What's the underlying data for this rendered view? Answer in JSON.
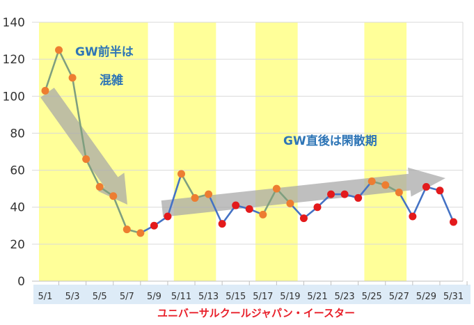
{
  "chart_data": {
    "type": "line",
    "title": "",
    "xlabel": "ユニバーサルクールジャパン・イースター",
    "ylabel": "",
    "ylim": [
      0,
      140
    ],
    "yticks": [
      0,
      20,
      40,
      60,
      80,
      100,
      120,
      140
    ],
    "grid": true,
    "x": [
      "5/1",
      "5/2",
      "5/3",
      "5/4",
      "5/5",
      "5/6",
      "5/7",
      "5/8",
      "5/9",
      "5/10",
      "5/11",
      "5/12",
      "5/13",
      "5/14",
      "5/15",
      "5/16",
      "5/17",
      "5/18",
      "5/19",
      "5/20",
      "5/21",
      "5/22",
      "5/23",
      "5/24",
      "5/25",
      "5/26",
      "5/27",
      "5/28",
      "5/29",
      "5/30",
      "5/31"
    ],
    "xtick_labels": [
      "5/1",
      "5/3",
      "5/5",
      "5/7",
      "5/9",
      "5/11",
      "5/13",
      "5/15",
      "5/17",
      "5/19",
      "5/21",
      "5/23",
      "5/25",
      "5/27",
      "5/29",
      "5/31"
    ],
    "series": [
      {
        "values": [
          103,
          125,
          110,
          66,
          51,
          46,
          28,
          26,
          30,
          35,
          58,
          45,
          47,
          31,
          41,
          39,
          36,
          50,
          42,
          34,
          40,
          47,
          47,
          45,
          54,
          52,
          48,
          35,
          51,
          49,
          32
        ],
        "colors": {
          "line_highlighted": "#7f9f7f",
          "line_normal": "#4472c4",
          "marker_highlighted": "#ed7d31",
          "marker_normal": "#e31a1c"
        }
      }
    ],
    "highlight_ranges": [
      [
        "5/1",
        "5/8"
      ],
      [
        "5/11",
        "5/13"
      ],
      [
        "5/17",
        "5/19"
      ],
      [
        "5/25",
        "5/27"
      ]
    ],
    "annotations": [
      {
        "lines": [
          "GW前半は",
          "混雑"
        ]
      },
      {
        "lines": [
          "GW直後は閑散期"
        ]
      }
    ],
    "colors": {
      "highlight_band": "#ffff99",
      "trend_arrow": "#a6a6a6",
      "x_axis_strip": "#ddebf7",
      "title_red": "#e8202a",
      "annotation_blue": "#2e75b6",
      "grid": "#d9d9d9"
    }
  }
}
